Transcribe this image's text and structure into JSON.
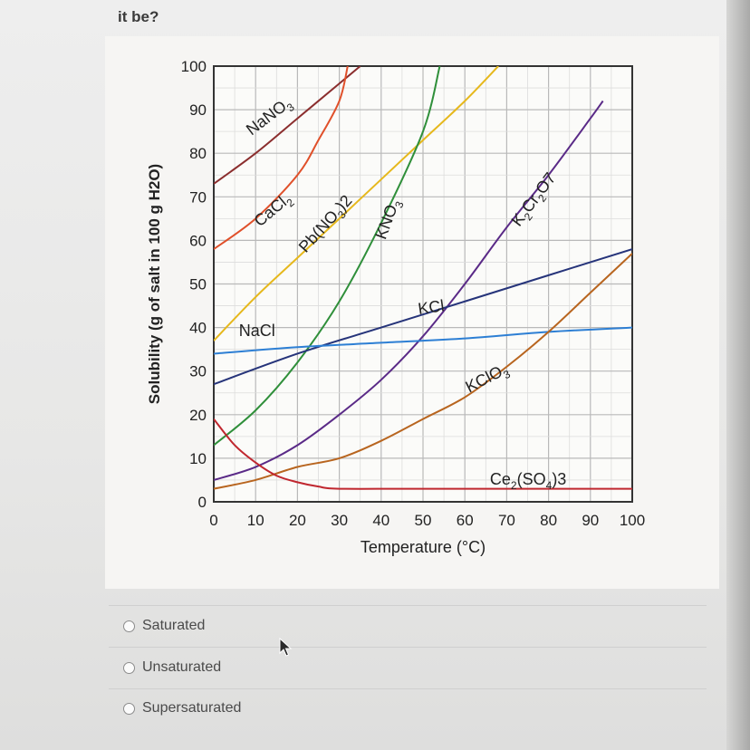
{
  "question": {
    "fragment": "it be?"
  },
  "options": [
    {
      "label": "Saturated"
    },
    {
      "label": "Unsaturated"
    },
    {
      "label": "Supersaturated"
    }
  ],
  "icons": {
    "pointer": "mouse-pointer-icon"
  },
  "chart_data": {
    "type": "line",
    "title": "",
    "xlabel": "Temperature (°C)",
    "ylabel": "Solubility (g of salt in 100 g H2O)",
    "xlim": [
      0,
      100
    ],
    "ylim": [
      0,
      100
    ],
    "xticks": [
      "0",
      "10",
      "20",
      "30",
      "40",
      "50",
      "60",
      "70",
      "80",
      "90",
      "100"
    ],
    "yticks": [
      "0",
      "10",
      "20",
      "30",
      "40",
      "50",
      "60",
      "70",
      "80",
      "90",
      "100"
    ],
    "grid": true,
    "legend": "none",
    "series": [
      {
        "name": "NaNO3",
        "color": "#8b2e2e",
        "points": [
          [
            0,
            73
          ],
          [
            10,
            80
          ],
          [
            20,
            88
          ],
          [
            30,
            96
          ],
          [
            35,
            100
          ]
        ]
      },
      {
        "name": "CaCl2",
        "color": "#e0502a",
        "points": [
          [
            0,
            58
          ],
          [
            10,
            65
          ],
          [
            20,
            75
          ],
          [
            25,
            83
          ],
          [
            30,
            92
          ],
          [
            32,
            100
          ]
        ]
      },
      {
        "name": "Pb(NO3)2",
        "color": "#e6b81c",
        "points": [
          [
            0,
            37
          ],
          [
            10,
            47
          ],
          [
            20,
            56
          ],
          [
            30,
            65
          ],
          [
            40,
            74
          ],
          [
            50,
            83
          ],
          [
            60,
            92
          ],
          [
            68,
            100
          ]
        ]
      },
      {
        "name": "KNO3",
        "color": "#2f8f3a",
        "points": [
          [
            0,
            13
          ],
          [
            10,
            21
          ],
          [
            20,
            32
          ],
          [
            30,
            46
          ],
          [
            40,
            64
          ],
          [
            50,
            85
          ],
          [
            54,
            100
          ]
        ]
      },
      {
        "name": "K2Cr2O7",
        "color": "#5a2a87",
        "points": [
          [
            0,
            5
          ],
          [
            10,
            8
          ],
          [
            20,
            13
          ],
          [
            30,
            20
          ],
          [
            40,
            28
          ],
          [
            50,
            38
          ],
          [
            60,
            50
          ],
          [
            70,
            63
          ],
          [
            80,
            75
          ],
          [
            90,
            88
          ],
          [
            93,
            92
          ]
        ]
      },
      {
        "name": "KCl",
        "color": "#26347a",
        "points": [
          [
            0,
            27
          ],
          [
            20,
            34
          ],
          [
            40,
            40
          ],
          [
            60,
            46
          ],
          [
            80,
            52
          ],
          [
            100,
            58
          ]
        ]
      },
      {
        "name": "NaCl",
        "color": "#2d7fd4",
        "points": [
          [
            0,
            34
          ],
          [
            20,
            35.5
          ],
          [
            40,
            36.5
          ],
          [
            60,
            37.5
          ],
          [
            80,
            39
          ],
          [
            100,
            40
          ]
        ]
      },
      {
        "name": "KClO3",
        "color": "#b8651f",
        "points": [
          [
            0,
            3
          ],
          [
            10,
            5
          ],
          [
            20,
            8
          ],
          [
            30,
            10
          ],
          [
            40,
            14
          ],
          [
            50,
            19
          ],
          [
            60,
            24
          ],
          [
            70,
            31
          ],
          [
            80,
            39
          ],
          [
            90,
            48
          ],
          [
            100,
            57
          ]
        ]
      },
      {
        "name": "Ce2(SO4)3",
        "color": "#c0272f",
        "points": [
          [
            0,
            19
          ],
          [
            5,
            13
          ],
          [
            10,
            9
          ],
          [
            15,
            6
          ],
          [
            20,
            4.5
          ],
          [
            25,
            3.5
          ],
          [
            30,
            3
          ],
          [
            50,
            3
          ],
          [
            100,
            3
          ]
        ]
      }
    ],
    "labels": [
      {
        "text": "NaNO",
        "sub": "3",
        "x": 9,
        "y": 84,
        "rotate": -37
      },
      {
        "text": "CaCl",
        "sub": "2",
        "x": 11,
        "y": 63,
        "rotate": -40
      },
      {
        "text": "Pb(NO",
        "sub": "3",
        "tail": ")2",
        "x": 22,
        "y": 57,
        "rotate": -48
      },
      {
        "text": "KNO",
        "sub": "3",
        "x": 41,
        "y": 60,
        "rotate": -70
      },
      {
        "text": "K",
        "sub": "2",
        "tail": "Cr",
        "sub2": "2",
        "tail2": "O7",
        "x": 73,
        "y": 63,
        "rotate": -53
      },
      {
        "text": "KCl",
        "x": 49,
        "y": 43,
        "rotate": -8
      },
      {
        "text": "NaCl",
        "x": 6,
        "y": 38,
        "rotate": 0
      },
      {
        "text": "KClO",
        "sub": "3",
        "x": 61,
        "y": 25,
        "rotate": -27
      },
      {
        "text": "Ce",
        "sub": "2",
        "tail": "(SO",
        "sub2": "4",
        "tail2": ")3",
        "x": 66,
        "y": 4,
        "rotate": 0
      }
    ]
  }
}
